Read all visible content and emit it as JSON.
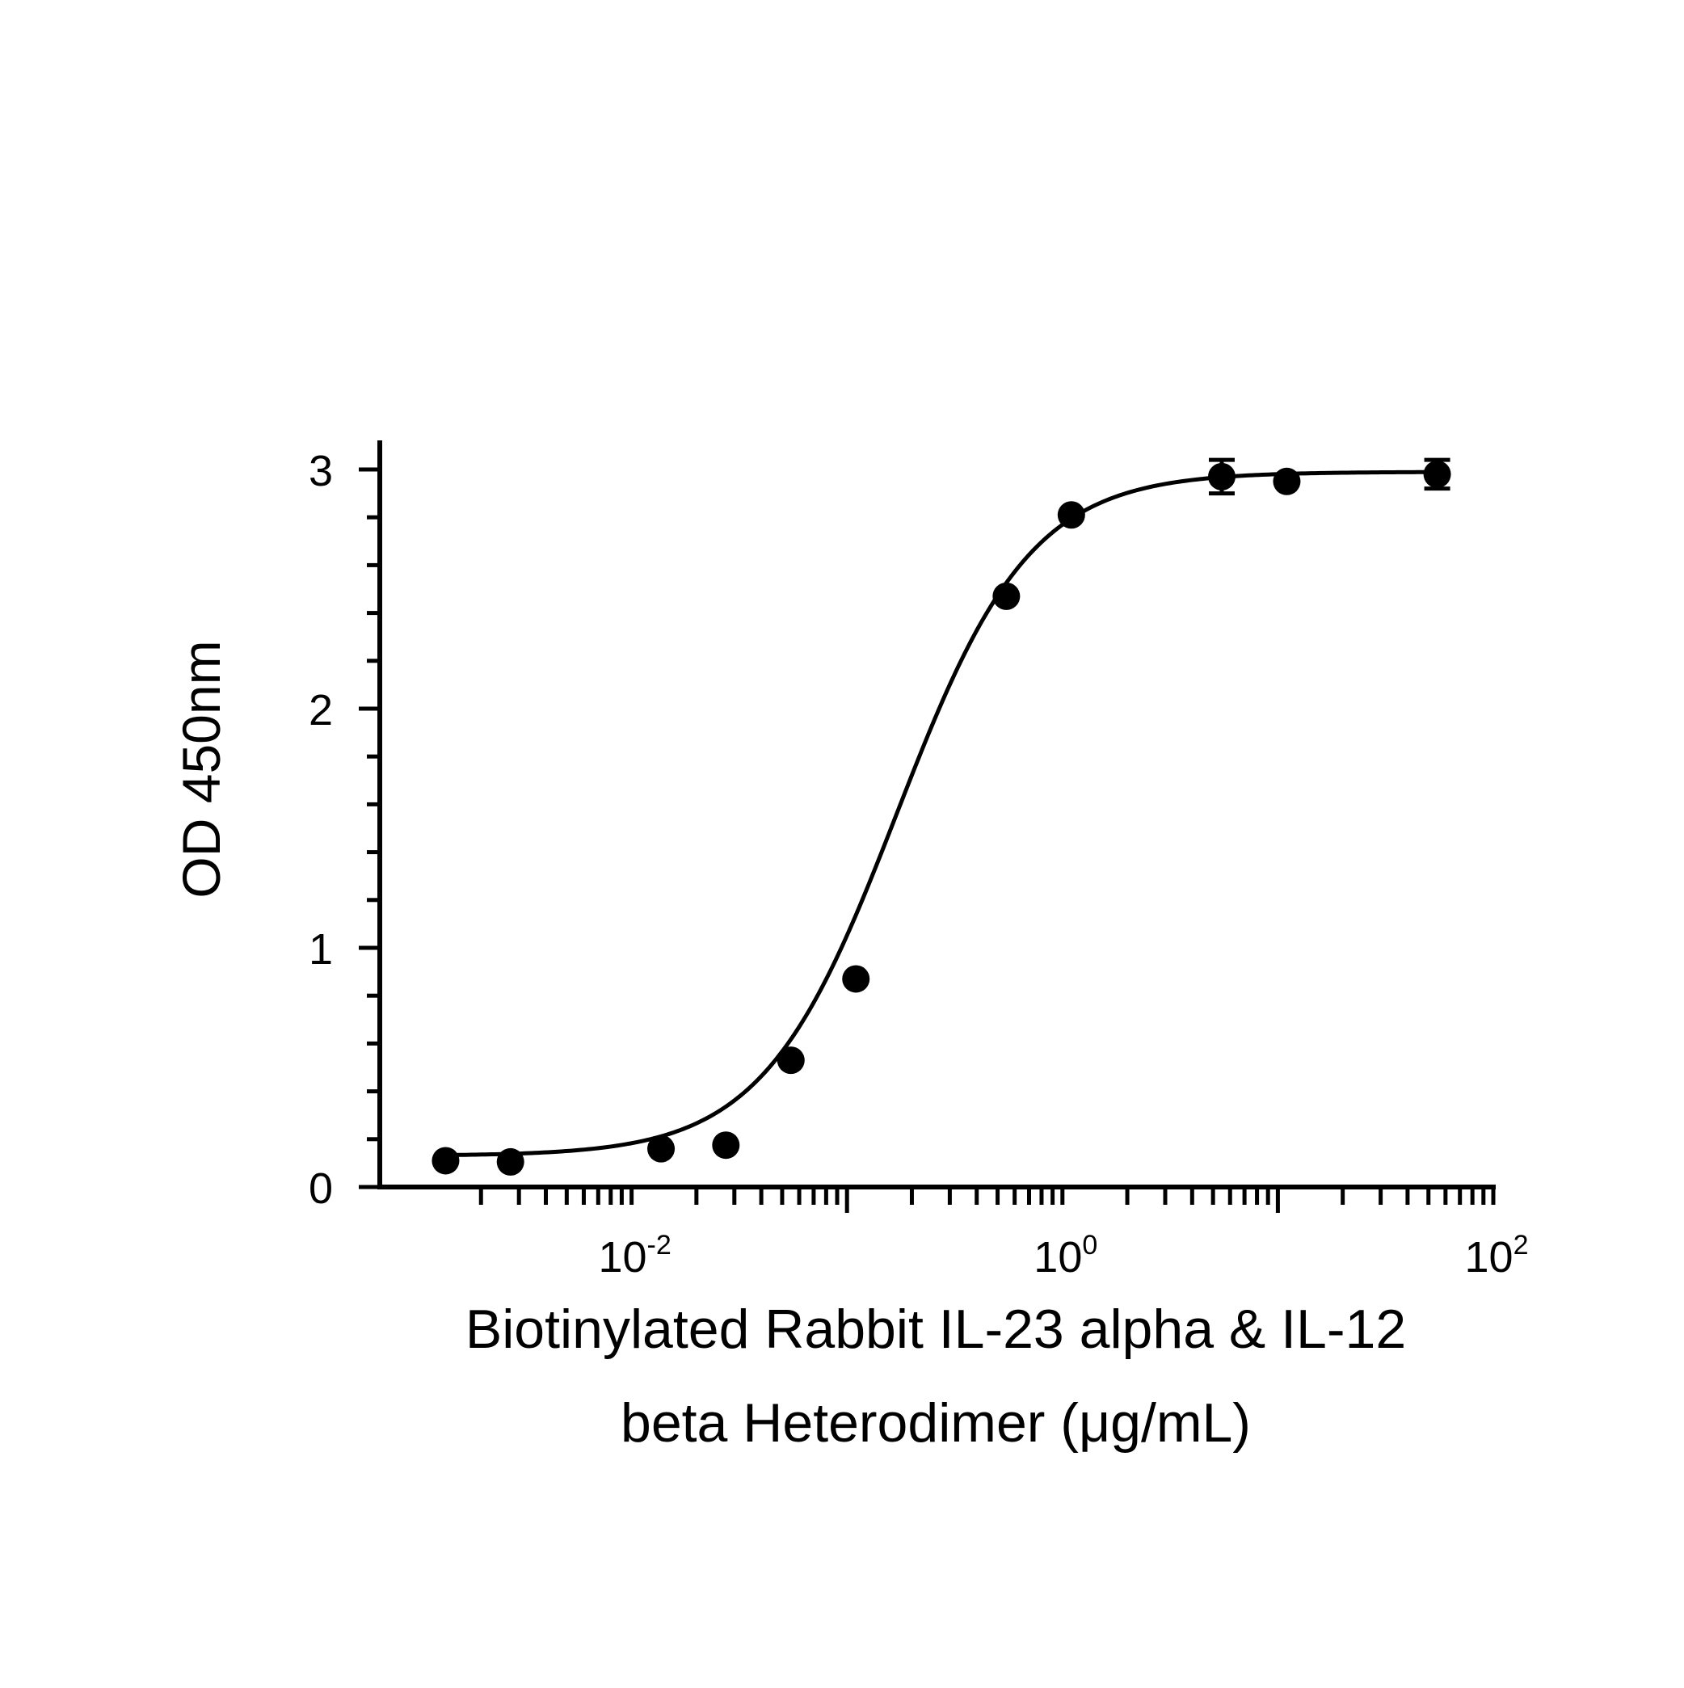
{
  "chart_data": {
    "type": "scatter",
    "title": "",
    "xlabel_lines": [
      "Biotinylated Rabbit IL-23 alpha & IL-12",
      "beta Heterodimer (μg/mL)"
    ],
    "ylabel": "OD 450nm",
    "x_scale": "log10",
    "xlim": [
      0.001,
      100
    ],
    "ylim": [
      0,
      3.1
    ],
    "y_ticks": [
      {
        "value": 0,
        "label": "0"
      },
      {
        "value": 1,
        "label": "1"
      },
      {
        "value": 2,
        "label": "2"
      },
      {
        "value": 3,
        "label": "3"
      }
    ],
    "x_ticks": [
      {
        "value": 0.01,
        "base": "10",
        "exp": "-2"
      },
      {
        "value": 1,
        "base": "10",
        "exp": "0"
      },
      {
        "value": 100,
        "base": "10",
        "exp": "2"
      }
    ],
    "grid": false,
    "legend": "none",
    "color": "#000000",
    "points": [
      {
        "x": 0.00137,
        "y": 0.11,
        "err": 0
      },
      {
        "x": 0.00274,
        "y": 0.105,
        "err": 0
      },
      {
        "x": 0.0137,
        "y": 0.16,
        "err": 0
      },
      {
        "x": 0.0274,
        "y": 0.175,
        "err": 0
      },
      {
        "x": 0.0549,
        "y": 0.53,
        "err": 0
      },
      {
        "x": 0.11,
        "y": 0.87,
        "err": 0
      },
      {
        "x": 0.549,
        "y": 2.47,
        "err": 0
      },
      {
        "x": 1.1,
        "y": 2.81,
        "err": 0
      },
      {
        "x": 5.49,
        "y": 2.97,
        "err": 0.07
      },
      {
        "x": 11.0,
        "y": 2.95,
        "err": 0
      },
      {
        "x": 54.9,
        "y": 2.98,
        "err": 0.06
      }
    ],
    "fit": {
      "model": "4PL",
      "bottom": 0.13,
      "top": 2.99,
      "ec50": 0.17,
      "hill": 1.4
    }
  }
}
